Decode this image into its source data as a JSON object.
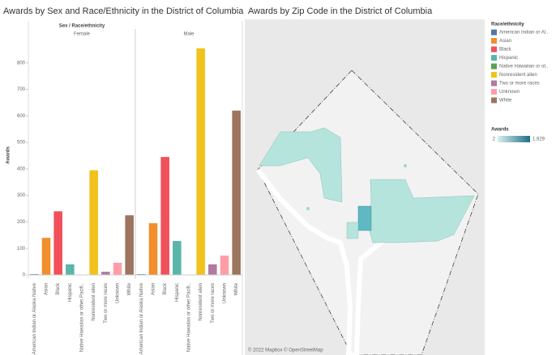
{
  "chart_data": {
    "type": "bar",
    "title": "Awards by Sex and Race/Ethnicity in the District of Columbia",
    "header": "Sex / Race/ethnicity",
    "ylabel": "Awards",
    "categories": [
      "American Indian or Alaska Native",
      "Asian",
      "Black",
      "Hispanic",
      "Native Hawaiian or other Pacifi..",
      "Nonresident alien",
      "Two or more races",
      "Unknown",
      "White"
    ],
    "colors": [
      "#4e79a7",
      "#f28e2b",
      "#f0505a",
      "#5ab5ab",
      "#59a14f",
      "#f1c21b",
      "#b07aa1",
      "#ff9da7",
      "#9c755f"
    ],
    "series": [
      {
        "name": "Female",
        "values": [
          3,
          140,
          240,
          40,
          1,
          395,
          12,
          46,
          225
        ]
      },
      {
        "name": "Male",
        "values": [
          3,
          195,
          445,
          128,
          1,
          855,
          40,
          73,
          620
        ]
      }
    ],
    "ylim": [
      0,
      900
    ],
    "yticks": [
      0,
      100,
      200,
      300,
      400,
      500,
      600,
      700,
      800
    ]
  },
  "map": {
    "title": "Awards by Zip Code in the District of Columbia",
    "legend_title": "Race/ethnicity",
    "legend_items": [
      "American Indian or Al..",
      "Asian",
      "Black",
      "Hispanic",
      "Native Hawaiian or ot..",
      "Nonresident alien",
      "Two or more races",
      "Unknown",
      "White"
    ],
    "awards_title": "Awards",
    "awards_min": 2,
    "awards_max": {
      "value": 1929,
      "label": "1,929"
    },
    "attribution": "© 2022 Mapbox © OpenStreetMap"
  }
}
